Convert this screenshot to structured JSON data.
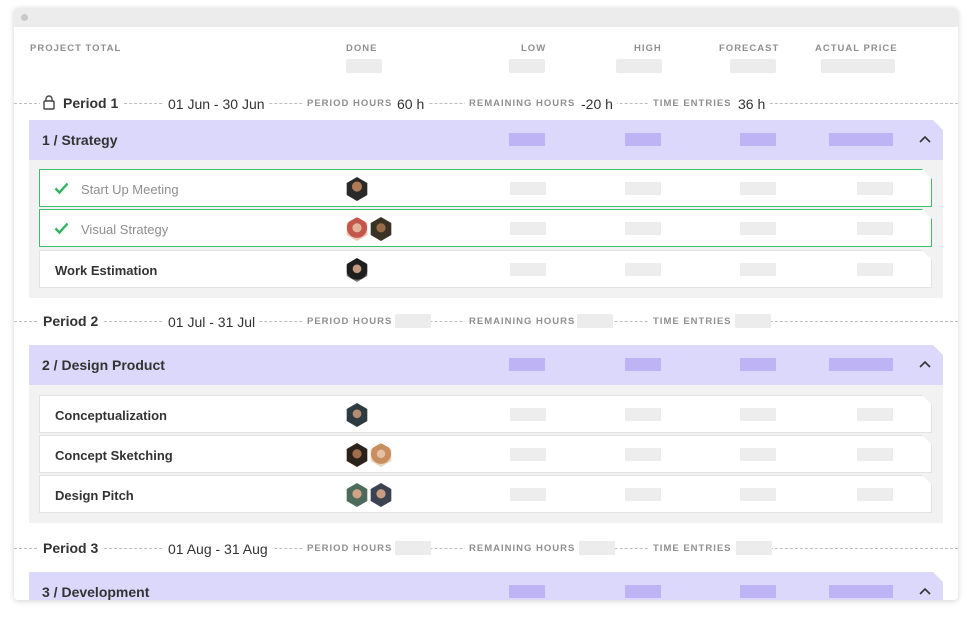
{
  "totals": {
    "labels": [
      "PROJECT TOTAL",
      "DONE",
      "LOW",
      "HIGH",
      "FORECAST",
      "ACTUAL PRICE"
    ]
  },
  "periods": [
    {
      "label": "Period 1",
      "dates": "01 Jun - 30 Jun",
      "locked": true,
      "period_hours_label": "PERIOD HOURS",
      "period_hours": "60 h",
      "remaining_hours_label": "REMAINING HOURS",
      "remaining_hours": "-20 h",
      "time_entries_label": "TIME ENTRIES",
      "time_entries": "36 h"
    },
    {
      "label": "Period 2",
      "dates": "01 Jul - 31 Jul",
      "period_hours_label": "PERIOD HOURS",
      "remaining_hours_label": "REMAINING HOURS",
      "time_entries_label": "TIME ENTRIES"
    },
    {
      "label": "Period 3",
      "dates": "01 Aug - 31 Aug",
      "period_hours_label": "PERIOD HOURS",
      "remaining_hours_label": "REMAINING HOURS",
      "time_entries_label": "TIME ENTRIES"
    }
  ],
  "groups": [
    {
      "title": "1 / Strategy",
      "tasks": [
        {
          "name": "Start Up Meeting",
          "done": true,
          "avatars": [
            "avatar-dark-1"
          ]
        },
        {
          "name": "Visual Strategy",
          "done": true,
          "avatars": [
            "avatar-woman-1",
            "avatar-man-glasses"
          ]
        },
        {
          "name": "Work Estimation",
          "done": false,
          "avatars": [
            "avatar-man-2"
          ]
        }
      ]
    },
    {
      "title": "2 / Design Product",
      "tasks": [
        {
          "name": "Conceptualization",
          "done": false,
          "avatars": [
            "avatar-man-3"
          ]
        },
        {
          "name": "Concept Sketching",
          "done": false,
          "avatars": [
            "avatar-man-4",
            "avatar-woman-2"
          ]
        },
        {
          "name": "Design Pitch",
          "done": false,
          "avatars": [
            "avatar-man-5",
            "avatar-man-6"
          ]
        }
      ]
    },
    {
      "title": "3 / Development",
      "tasks": []
    }
  ],
  "icons": {
    "lock": "lock-icon",
    "check": "check-icon",
    "collapse": "chevron-up-icon"
  },
  "colors": {
    "group_header": "#dcd8fb",
    "group_bar": "#bdb3f5",
    "done_border": "#3cbd6a",
    "placeholder": "#ececec"
  }
}
